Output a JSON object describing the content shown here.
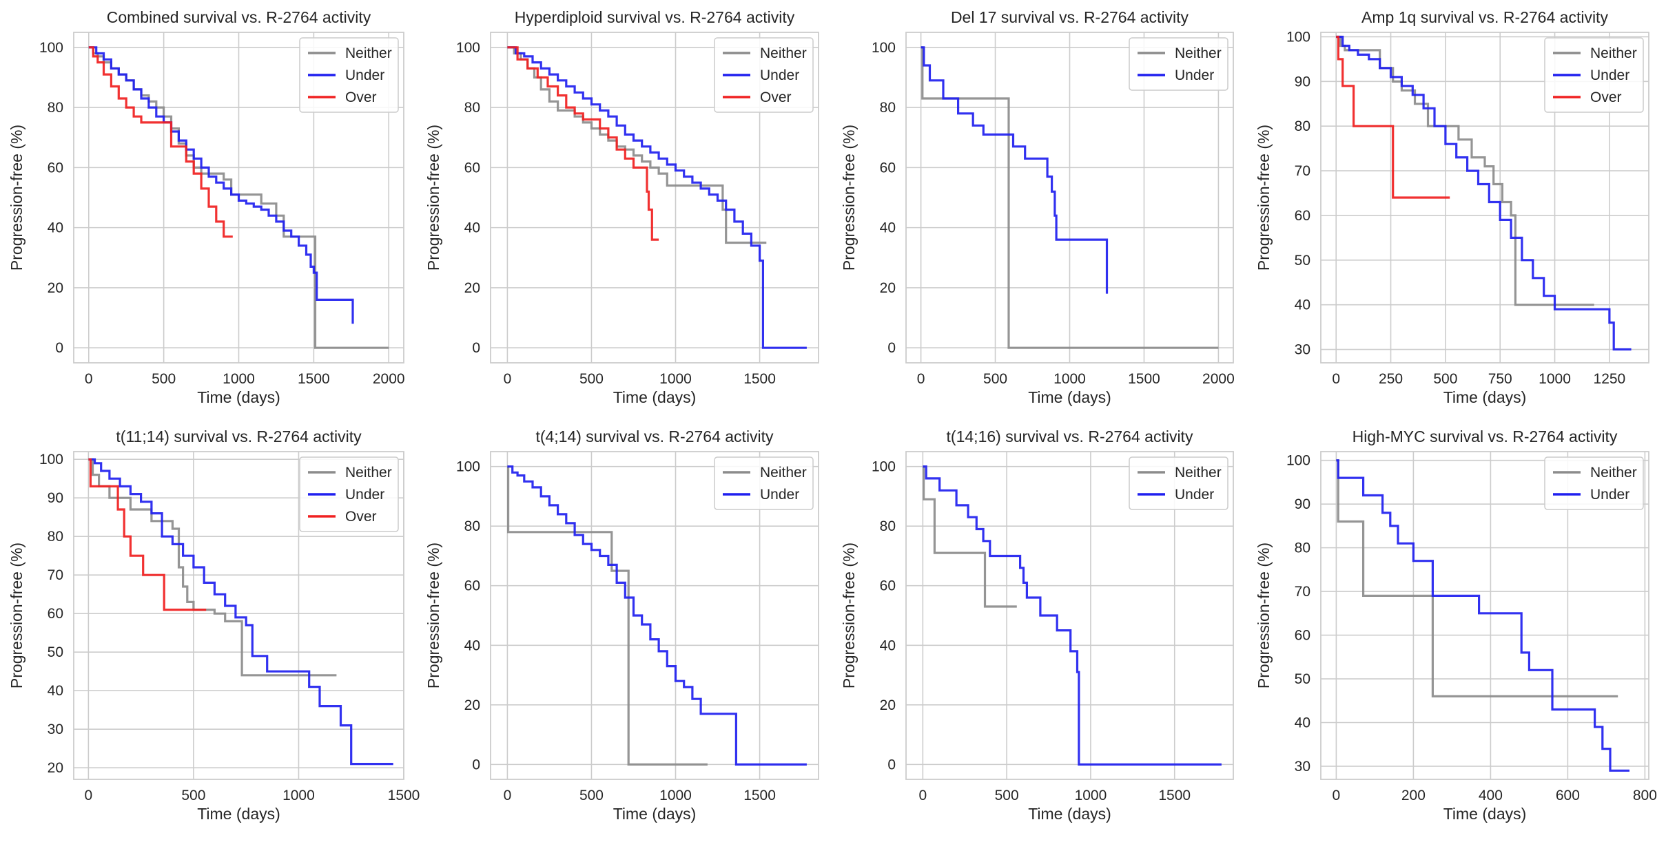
{
  "colors": {
    "Neither": "#8c8c8c",
    "Under": "#1f1fef",
    "Over": "#f02020",
    "grid": "#cccccc",
    "frame": "#cccccc"
  },
  "chart_data": [
    {
      "type": "line",
      "title": "Combined survival vs. R-2764 activity",
      "xlabel": "Time (days)",
      "ylabel": "Progression-free (%)",
      "xlim": [
        -100,
        2100
      ],
      "ylim": [
        -5,
        105
      ],
      "xticks": [
        0,
        500,
        1000,
        1500,
        2000
      ],
      "yticks": [
        0,
        20,
        40,
        60,
        80,
        100
      ],
      "grid": true,
      "legend": "top-right",
      "series": [
        {
          "name": "Neither",
          "x": [
            0,
            30,
            60,
            100,
            150,
            200,
            250,
            300,
            350,
            400,
            450,
            500,
            550,
            600,
            650,
            700,
            750,
            800,
            850,
            900,
            950,
            1000,
            1050,
            1100,
            1150,
            1200,
            1250,
            1300,
            1350,
            1400,
            1450,
            1510,
            1510,
            2000
          ],
          "y": [
            100,
            98,
            97,
            95,
            93,
            91,
            89,
            86,
            84,
            82,
            80,
            77,
            73,
            68,
            64,
            60,
            58,
            58,
            58,
            56,
            51,
            51,
            51,
            51,
            48,
            48,
            44,
            37,
            37,
            37,
            37,
            37,
            0,
            0
          ]
        },
        {
          "name": "Under",
          "x": [
            0,
            50,
            100,
            150,
            200,
            250,
            300,
            350,
            400,
            450,
            500,
            550,
            600,
            650,
            700,
            750,
            800,
            850,
            900,
            950,
            1000,
            1050,
            1100,
            1150,
            1200,
            1250,
            1300,
            1350,
            1400,
            1450,
            1480,
            1500,
            1520,
            1760,
            1760
          ],
          "y": [
            100,
            98,
            96,
            93,
            91,
            89,
            86,
            83,
            80,
            77,
            75,
            72,
            69,
            66,
            63,
            60,
            57,
            55,
            53,
            51,
            49,
            48,
            47,
            46,
            44,
            42,
            39,
            37,
            34,
            31,
            27,
            25,
            16,
            16,
            8
          ]
        },
        {
          "name": "Over",
          "x": [
            0,
            30,
            60,
            100,
            150,
            200,
            250,
            300,
            350,
            400,
            450,
            500,
            550,
            600,
            650,
            700,
            750,
            800,
            850,
            900,
            960
          ],
          "y": [
            100,
            97,
            95,
            91,
            87,
            83,
            80,
            77,
            75,
            75,
            75,
            75,
            67,
            67,
            62,
            58,
            53,
            47,
            42,
            37,
            37
          ]
        }
      ]
    },
    {
      "type": "line",
      "title": "Hyperdiploid survival vs. R-2764 activity",
      "xlabel": "Time (days)",
      "ylabel": "Progression-free (%)",
      "xlim": [
        -100,
        1850
      ],
      "ylim": [
        -5,
        105
      ],
      "xticks": [
        0,
        500,
        1000,
        1500
      ],
      "yticks": [
        0,
        20,
        40,
        60,
        80,
        100
      ],
      "grid": true,
      "legend": "top-right",
      "series": [
        {
          "name": "Neither",
          "x": [
            0,
            40,
            80,
            120,
            160,
            200,
            250,
            300,
            350,
            400,
            450,
            500,
            550,
            600,
            650,
            700,
            750,
            800,
            850,
            900,
            950,
            1000,
            1100,
            1200,
            1280,
            1300,
            1350,
            1400,
            1450,
            1500,
            1540
          ],
          "y": [
            100,
            98,
            96,
            93,
            90,
            86,
            82,
            79,
            79,
            77,
            75,
            73,
            71,
            69,
            67,
            66,
            64,
            62,
            60,
            58,
            54,
            54,
            54,
            54,
            46,
            35,
            35,
            35,
            35,
            35,
            35
          ]
        },
        {
          "name": "Under",
          "x": [
            0,
            50,
            100,
            150,
            200,
            250,
            300,
            350,
            400,
            450,
            500,
            550,
            600,
            650,
            700,
            750,
            800,
            850,
            900,
            950,
            1000,
            1050,
            1100,
            1150,
            1200,
            1250,
            1300,
            1350,
            1400,
            1450,
            1500,
            1520,
            1520,
            1780
          ],
          "y": [
            100,
            98,
            97,
            95,
            93,
            91,
            89,
            87,
            85,
            83,
            81,
            79,
            77,
            74,
            71,
            69,
            67,
            65,
            63,
            61,
            59,
            57,
            55,
            53,
            51,
            49,
            46,
            42,
            38,
            34,
            29,
            25,
            0,
            0
          ]
        },
        {
          "name": "Over",
          "x": [
            0,
            60,
            120,
            180,
            240,
            300,
            350,
            400,
            450,
            500,
            550,
            600,
            650,
            700,
            750,
            800,
            830,
            840,
            860,
            900
          ],
          "y": [
            100,
            96,
            93,
            90,
            87,
            84,
            80,
            78,
            76,
            76,
            73,
            70,
            66,
            63,
            60,
            60,
            52,
            46,
            36,
            36
          ]
        }
      ]
    },
    {
      "type": "line",
      "title": "Del 17 survival vs. R-2764 activity",
      "xlabel": "Time (days)",
      "ylabel": "Progression-free (%)",
      "xlim": [
        -100,
        2100
      ],
      "ylim": [
        -5,
        105
      ],
      "xticks": [
        0,
        500,
        1000,
        1500,
        2000
      ],
      "yticks": [
        0,
        20,
        40,
        60,
        80,
        100
      ],
      "grid": true,
      "legend": "top-right",
      "series": [
        {
          "name": "Neither",
          "x": [
            0,
            10,
            590,
            590,
            2000
          ],
          "y": [
            100,
            83,
            83,
            0,
            0
          ]
        },
        {
          "name": "Under",
          "x": [
            0,
            20,
            60,
            150,
            250,
            350,
            420,
            560,
            620,
            700,
            850,
            880,
            900,
            910,
            1250
          ],
          "y": [
            100,
            94,
            89,
            83,
            78,
            74,
            71,
            71,
            67,
            63,
            57,
            52,
            44,
            36,
            18
          ]
        }
      ]
    },
    {
      "type": "line",
      "title": "Amp 1q survival vs. R-2764 activity",
      "xlabel": "Time (days)",
      "ylabel": "Progression-free (%)",
      "xlim": [
        -70,
        1430
      ],
      "ylim": [
        27,
        101
      ],
      "xticks": [
        0,
        250,
        500,
        750,
        1000,
        1250
      ],
      "yticks": [
        30,
        40,
        50,
        60,
        70,
        80,
        90,
        100
      ],
      "grid": true,
      "legend": "top-right",
      "series": [
        {
          "name": "Neither",
          "x": [
            0,
            20,
            40,
            80,
            120,
            160,
            200,
            260,
            300,
            360,
            420,
            500,
            560,
            620,
            680,
            720,
            760,
            800,
            820,
            900,
            1000,
            1100,
            1180
          ],
          "y": [
            100,
            98,
            97,
            97,
            97,
            97,
            93,
            90,
            88,
            85,
            80,
            80,
            77,
            73,
            71,
            67,
            63,
            60,
            40,
            40,
            40,
            40,
            40
          ]
        },
        {
          "name": "Under",
          "x": [
            0,
            30,
            60,
            100,
            150,
            200,
            250,
            300,
            350,
            400,
            450,
            500,
            550,
            600,
            650,
            700,
            750,
            800,
            850,
            900,
            950,
            1000,
            1100,
            1200,
            1250,
            1270,
            1350
          ],
          "y": [
            100,
            98,
            97,
            96,
            95,
            93,
            91,
            89,
            87,
            84,
            80,
            76,
            73,
            70,
            67,
            63,
            59,
            55,
            50,
            46,
            42,
            39,
            39,
            39,
            36,
            30,
            30
          ]
        },
        {
          "name": "Over",
          "x": [
            0,
            10,
            30,
            80,
            260,
            520
          ],
          "y": [
            100,
            95,
            89,
            80,
            64,
            64
          ]
        }
      ]
    },
    {
      "type": "line",
      "title": "t(11;14) survival vs. R-2764 activity",
      "xlabel": "Time (days)",
      "ylabel": "Progression-free (%)",
      "xlim": [
        -70,
        1500
      ],
      "ylim": [
        17,
        102
      ],
      "xticks": [
        0,
        500,
        1000,
        1500
      ],
      "yticks": [
        20,
        30,
        40,
        50,
        60,
        70,
        80,
        90,
        100
      ],
      "grid": true,
      "legend": "top-right",
      "series": [
        {
          "name": "Neither",
          "x": [
            0,
            20,
            50,
            100,
            150,
            200,
            250,
            300,
            400,
            430,
            450,
            470,
            500,
            550,
            600,
            650,
            700,
            730,
            1000,
            1180
          ],
          "y": [
            100,
            96,
            93,
            90,
            90,
            87,
            87,
            84,
            82,
            72,
            67,
            63,
            61,
            61,
            60,
            58,
            58,
            44,
            44,
            44
          ]
        },
        {
          "name": "Under",
          "x": [
            0,
            30,
            60,
            100,
            150,
            200,
            250,
            300,
            350,
            400,
            450,
            500,
            550,
            600,
            650,
            700,
            750,
            780,
            850,
            1000,
            1050,
            1100,
            1150,
            1200,
            1250,
            1450
          ],
          "y": [
            100,
            99,
            97,
            95,
            93,
            91,
            89,
            86,
            80,
            78,
            75,
            72,
            68,
            65,
            62,
            59,
            57,
            49,
            45,
            45,
            41,
            36,
            36,
            31,
            21,
            21
          ]
        },
        {
          "name": "Over",
          "x": [
            0,
            10,
            60,
            140,
            170,
            200,
            260,
            360,
            560
          ],
          "y": [
            100,
            93,
            93,
            87,
            80,
            75,
            70,
            61,
            61
          ]
        }
      ]
    },
    {
      "type": "line",
      "title": "t(4;14) survival vs. R-2764 activity",
      "xlabel": "Time (days)",
      "ylabel": "Progression-free (%)",
      "xlim": [
        -100,
        1850
      ],
      "ylim": [
        -5,
        105
      ],
      "xticks": [
        0,
        500,
        1000,
        1500
      ],
      "yticks": [
        0,
        20,
        40,
        60,
        80,
        100
      ],
      "grid": true,
      "legend": "top-right",
      "series": [
        {
          "name": "Neither",
          "x": [
            0,
            5,
            620,
            620,
            720,
            720,
            1190
          ],
          "y": [
            100,
            78,
            78,
            65,
            65,
            0,
            0
          ]
        },
        {
          "name": "Under",
          "x": [
            0,
            30,
            60,
            100,
            150,
            200,
            250,
            300,
            350,
            400,
            450,
            500,
            550,
            600,
            650,
            700,
            750,
            800,
            850,
            900,
            950,
            1000,
            1050,
            1100,
            1150,
            1200,
            1350,
            1360,
            1780
          ],
          "y": [
            100,
            98,
            97,
            95,
            93,
            90,
            87,
            84,
            81,
            77,
            74,
            72,
            70,
            67,
            61,
            56,
            50,
            47,
            42,
            38,
            33,
            28,
            26,
            22,
            17,
            17,
            17,
            0,
            0
          ]
        }
      ]
    },
    {
      "type": "line",
      "title": "t(14;16) survival vs. R-2764 activity",
      "xlabel": "Time (days)",
      "ylabel": "Progression-free (%)",
      "xlim": [
        -100,
        1850
      ],
      "ylim": [
        -5,
        105
      ],
      "xticks": [
        0,
        500,
        1000,
        1500
      ],
      "yticks": [
        0,
        20,
        40,
        60,
        80,
        100
      ],
      "grid": true,
      "legend": "top-right",
      "series": [
        {
          "name": "Neither",
          "x": [
            0,
            5,
            70,
            370,
            560
          ],
          "y": [
            100,
            89,
            71,
            53,
            53
          ]
        },
        {
          "name": "Under",
          "x": [
            0,
            20,
            100,
            200,
            270,
            320,
            360,
            400,
            560,
            580,
            600,
            620,
            700,
            800,
            880,
            920,
            930,
            1780
          ],
          "y": [
            100,
            96,
            92,
            87,
            83,
            79,
            75,
            70,
            70,
            66,
            61,
            56,
            50,
            45,
            38,
            31,
            0,
            0
          ]
        }
      ]
    },
    {
      "type": "line",
      "title": "High-MYC survival vs. R-2764 activity",
      "xlabel": "Time (days)",
      "ylabel": "Progression-free (%)",
      "xlim": [
        -40,
        810
      ],
      "ylim": [
        27,
        102
      ],
      "xticks": [
        0,
        200,
        400,
        600,
        800
      ],
      "yticks": [
        30,
        40,
        50,
        60,
        70,
        80,
        90,
        100
      ],
      "grid": true,
      "legend": "top-right",
      "series": [
        {
          "name": "Neither",
          "x": [
            0,
            5,
            70,
            250,
            730
          ],
          "y": [
            100,
            86,
            69,
            46,
            46
          ]
        },
        {
          "name": "Under",
          "x": [
            0,
            5,
            70,
            120,
            140,
            160,
            200,
            250,
            300,
            370,
            420,
            480,
            500,
            550,
            560,
            670,
            690,
            710,
            760
          ],
          "y": [
            100,
            96,
            92,
            88,
            85,
            81,
            77,
            69,
            69,
            65,
            65,
            56,
            52,
            52,
            43,
            39,
            34,
            29,
            29
          ]
        }
      ]
    }
  ]
}
